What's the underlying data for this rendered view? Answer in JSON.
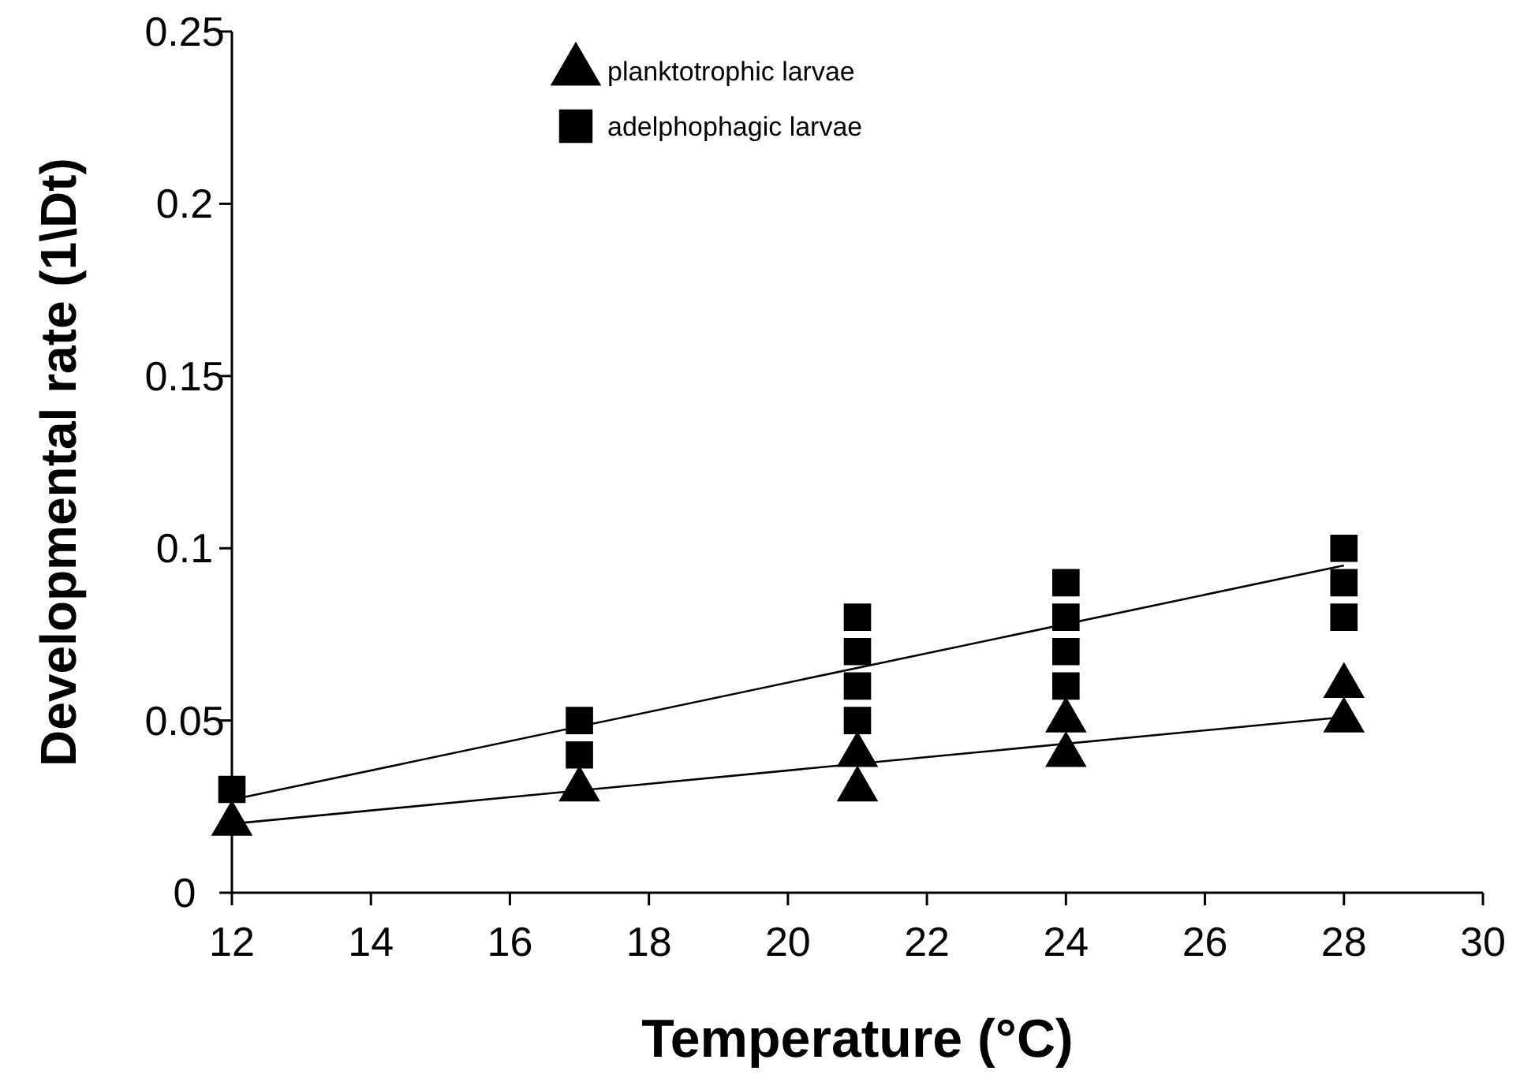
{
  "chart_data": {
    "type": "scatter",
    "xlabel": "Temperature (°C)",
    "ylabel": "Developmental rate (1\\Dt)",
    "xlim": [
      12,
      30
    ],
    "xticks": [
      12,
      14,
      16,
      18,
      20,
      22,
      24,
      26,
      28,
      30
    ],
    "ylim": [
      0,
      0.25
    ],
    "yticks": [
      0,
      0.05,
      0.1,
      0.15,
      0.2,
      0.25
    ],
    "grid": false,
    "legend": "top left",
    "series": [
      {
        "name": "planktotrophic larvae",
        "color": "#000000",
        "marker": "triangle",
        "x": [
          12,
          17,
          21,
          21,
          24,
          24,
          28,
          28
        ],
        "values": [
          0.02,
          0.03,
          0.04,
          0.03,
          0.05,
          0.04,
          0.06,
          0.05
        ]
      },
      {
        "name": "adelphophagic larvae",
        "color": "#000000",
        "marker": "square",
        "x": [
          12,
          17,
          17,
          21,
          21,
          21,
          21,
          24,
          24,
          24,
          24,
          28,
          28,
          28
        ],
        "values": [
          0.03,
          0.05,
          0.04,
          0.08,
          0.07,
          0.06,
          0.05,
          0.09,
          0.08,
          0.07,
          0.06,
          0.1,
          0.09,
          0.08
        ]
      },
      {
        "type": "line",
        "color": "#000000",
        "marker": "none",
        "line_style": "solid",
        "x": [
          12,
          28
        ],
        "values": [
          0.02,
          0.051
        ]
      },
      {
        "type": "line",
        "color": "#000000",
        "marker": "none",
        "line_style": "solid",
        "x": [
          12,
          28
        ],
        "values": [
          0.027,
          0.095
        ]
      }
    ]
  }
}
